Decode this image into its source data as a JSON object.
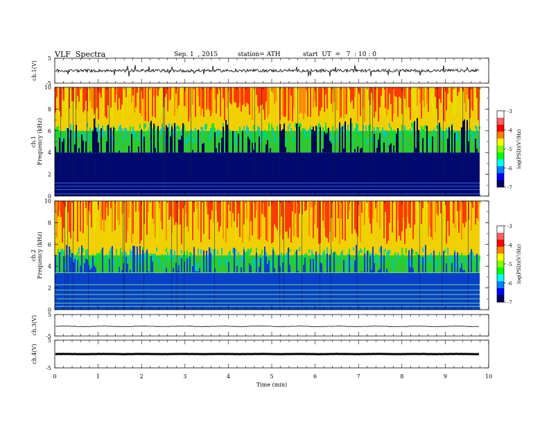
{
  "header": {
    "title": "VLF  Spectra",
    "date": "Sep. 1  , 2015",
    "station": "station= ATH",
    "start": "start  UT  =   7  : 10 : 0"
  },
  "colors": {
    "spectrogram_low": "#000a6e",
    "spectrogram_mid": "#00d000",
    "spectrogram_high": "#ff2000",
    "trace": "#000000"
  },
  "chart_data": [
    {
      "type": "line",
      "panel": "ch1-waveform",
      "ylabel": "ch.1(V)",
      "ylim": [
        -5,
        5
      ],
      "yticks": [
        "5",
        "-5"
      ],
      "description_values": {
        "baseline_v": 0,
        "typical_amplitude_v": 0.6,
        "spike_amplitude_v": 2.5
      }
    },
    {
      "type": "heatmap",
      "panel": "ch1-spectrogram",
      "ylabel_top": "ch.1",
      "ylabel": "Frequency  (kHz)",
      "ylim": [
        0,
        10
      ],
      "yticks": [
        "0",
        "2",
        "4",
        "6",
        "8",
        "10"
      ],
      "xlim": [
        0,
        9.8
      ],
      "colorbar": {
        "label": "log(PSD)(V²/Hz)",
        "range": [
          -7,
          -3
        ],
        "ticks": [
          "-3",
          "-4",
          "-5",
          "-6",
          "-7"
        ]
      },
      "band_edges_khz": {
        "dark_top": 4.0,
        "green_top": 6.0
      }
    },
    {
      "type": "heatmap",
      "panel": "ch2-spectrogram",
      "ylabel_top": "ch.2",
      "ylabel": "Frequency  (kHz)",
      "ylim": [
        0,
        10
      ],
      "yticks": [
        "0",
        "2",
        "4",
        "6",
        "8",
        "10"
      ],
      "xlim": [
        0,
        9.8
      ],
      "colorbar": {
        "label": "log(PSD)(V²/Hz)",
        "range": [
          -7,
          -3
        ],
        "ticks": [
          "-3",
          "-4",
          "-5",
          "-6",
          "-7"
        ]
      },
      "band_edges_khz": {
        "dark_top": 3.4,
        "green_top": 5.0
      }
    },
    {
      "type": "line",
      "panel": "ch3-waveform",
      "ylabel": "ch.3(V)",
      "ylim": [
        -5,
        5
      ],
      "yticks": [
        "5",
        "-5"
      ],
      "description_values": {
        "baseline_v": -0.5,
        "typical_amplitude_v": 0.2
      }
    },
    {
      "type": "line",
      "panel": "ch4-waveform",
      "ylabel": "ch.4(V)",
      "ylim": [
        -5,
        5
      ],
      "yticks": [
        "5",
        "-5"
      ],
      "description_values": {
        "baseline_v": 0,
        "typical_amplitude_v": 0.05
      }
    },
    {
      "type": "axis",
      "panel": "time-axis",
      "xlabel": "Time  (min)",
      "xlim": [
        0,
        10
      ],
      "xticks": [
        "0",
        "1",
        "2",
        "3",
        "4",
        "5",
        "6",
        "7",
        "8",
        "9",
        "10"
      ]
    }
  ]
}
